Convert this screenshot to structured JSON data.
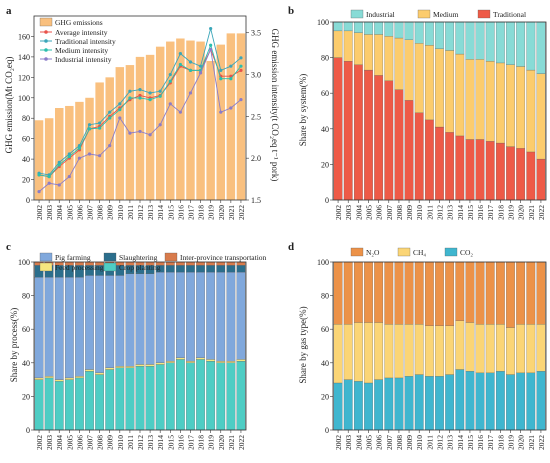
{
  "years": [
    "2002",
    "2003",
    "2004",
    "2005",
    "2006",
    "2007",
    "2008",
    "2009",
    "2010",
    "2011",
    "2012",
    "2013",
    "2014",
    "2015",
    "2016",
    "2017",
    "2018",
    "2019",
    "2020",
    "2021",
    "2022"
  ],
  "chart_data": [
    {
      "panel": "a",
      "type": "bar+line",
      "ylabel": "GHG emission(Mt CO₂eq)",
      "y2label": "GHG emission intensity(t CO₂eq t⁻¹ pork)",
      "ylim": [
        0,
        180
      ],
      "y2lim": [
        1.5,
        3.7
      ],
      "yticks": [
        0,
        20,
        40,
        60,
        80,
        100,
        120,
        140,
        160
      ],
      "y2ticks": [
        "1.5",
        "2.0",
        "2.5",
        "3.0",
        "3.5"
      ],
      "bar_series": {
        "name": "GHG emissions",
        "color": "#f9c07f",
        "values": [
          78,
          80,
          90,
          92,
          96,
          100,
          115,
          120,
          130,
          132,
          140,
          142,
          150,
          155,
          158,
          156,
          155,
          136,
          152,
          163,
          163
        ]
      },
      "line_series": [
        {
          "name": "Average intensity",
          "color": "#e8524a",
          "values": [
            1.8,
            1.78,
            1.9,
            2.0,
            2.1,
            2.35,
            2.38,
            2.5,
            2.6,
            2.7,
            2.75,
            2.72,
            2.75,
            2.9,
            3.1,
            3.05,
            3.05,
            3.3,
            2.98,
            2.98,
            3.05
          ]
        },
        {
          "name": "Traditional intensity",
          "color": "#3aa6b9",
          "values": [
            1.82,
            1.8,
            1.95,
            2.05,
            2.15,
            2.4,
            2.42,
            2.55,
            2.65,
            2.8,
            2.82,
            2.78,
            2.8,
            3.0,
            3.25,
            3.15,
            3.1,
            3.55,
            3.05,
            3.1,
            3.2
          ]
        },
        {
          "name": "Medium intensity",
          "color": "#2bbfae",
          "values": [
            1.8,
            1.78,
            1.92,
            2.02,
            2.12,
            2.35,
            2.36,
            2.48,
            2.58,
            2.72,
            2.72,
            2.7,
            2.74,
            2.92,
            3.12,
            3.05,
            3.05,
            3.35,
            2.95,
            2.95,
            3.1
          ]
        },
        {
          "name": "Industrial intensity",
          "color": "#8b7cc8",
          "values": [
            1.6,
            1.7,
            1.68,
            1.78,
            2.0,
            2.05,
            2.03,
            2.15,
            2.48,
            2.3,
            2.32,
            2.28,
            2.4,
            2.65,
            2.55,
            2.78,
            3.02,
            3.3,
            2.55,
            2.6,
            2.7
          ]
        }
      ]
    },
    {
      "panel": "b",
      "type": "bar",
      "stacked": true,
      "ylabel": "Share by system(%)",
      "ylim": [
        0,
        100
      ],
      "yticks": [
        0,
        20,
        40,
        60,
        80,
        100
      ],
      "series": [
        {
          "name": "Traditional",
          "color": "#ee5a47",
          "values": [
            80,
            78,
            76,
            73,
            70,
            67,
            62,
            56,
            49,
            45,
            41,
            38,
            36,
            34,
            34,
            33,
            32,
            30,
            29,
            27,
            23
          ]
        },
        {
          "name": "Medium",
          "color": "#fccc6d",
          "values": [
            15,
            17,
            18,
            20,
            23,
            25,
            29,
            34,
            39,
            42,
            44,
            46,
            46,
            45,
            45,
            45,
            45,
            46,
            46,
            46,
            48
          ]
        },
        {
          "name": "Industrial",
          "color": "#88dbd6",
          "values": [
            5,
            5,
            6,
            7,
            7,
            8,
            9,
            10,
            12,
            13,
            15,
            16,
            18,
            21,
            21,
            22,
            23,
            24,
            25,
            27,
            29
          ]
        }
      ]
    },
    {
      "panel": "c",
      "type": "bar",
      "stacked": true,
      "ylabel": "Share by process(%)",
      "ylim": [
        0,
        100
      ],
      "yticks": [
        0,
        20,
        40,
        60,
        80,
        100
      ],
      "series": [
        {
          "name": "Crop planting",
          "color": "#4ecdc4",
          "values": [
            30,
            31,
            29,
            30,
            31,
            35,
            33,
            36,
            37,
            37,
            38,
            38,
            39,
            40,
            42,
            40,
            42,
            41,
            40,
            40,
            41
          ]
        },
        {
          "name": "Feed processing",
          "color": "#f6e67f",
          "values": [
            1,
            1,
            1,
            1,
            1,
            1,
            1,
            1,
            1,
            1,
            1,
            1,
            1,
            1,
            1,
            1,
            1,
            1,
            1,
            1,
            1
          ]
        },
        {
          "name": "Pig farming",
          "color": "#80a8dc",
          "values": [
            60,
            59,
            61,
            60,
            59,
            56,
            58,
            55,
            54,
            55,
            54,
            54,
            54,
            53,
            51,
            53,
            51,
            52,
            53,
            53,
            52
          ]
        },
        {
          "name": "Slaughtering",
          "color": "#2b6e8c",
          "values": [
            7,
            7,
            7,
            7,
            7,
            6,
            6,
            6,
            6,
            5,
            5,
            5,
            4,
            4,
            4,
            4,
            4,
            4,
            4,
            4,
            4
          ]
        },
        {
          "name": "Inter-province transportation",
          "color": "#d87b4c",
          "values": [
            2,
            2,
            2,
            2,
            2,
            2,
            2,
            2,
            2,
            2,
            2,
            2,
            2,
            2,
            2,
            2,
            2,
            2,
            2,
            2,
            2
          ]
        }
      ]
    },
    {
      "panel": "d",
      "type": "bar",
      "stacked": true,
      "ylabel": "Share by gas type(%)",
      "ylim": [
        0,
        100
      ],
      "yticks": [
        0,
        20,
        40,
        60,
        80,
        100
      ],
      "series": [
        {
          "name": "CO₂",
          "color": "#3fb6cf",
          "values": [
            28,
            30,
            29,
            28,
            30,
            31,
            31,
            32,
            33,
            32,
            32,
            33,
            36,
            35,
            34,
            34,
            35,
            33,
            34,
            34,
            35
          ]
        },
        {
          "name": "CH₄",
          "color": "#fbd576",
          "values": [
            35,
            33,
            35,
            36,
            34,
            32,
            32,
            31,
            30,
            30,
            30,
            29,
            29,
            29,
            29,
            29,
            28,
            28,
            29,
            29,
            28
          ]
        },
        {
          "name": "N₂O",
          "color": "#ec9248",
          "values": [
            37,
            37,
            36,
            36,
            36,
            37,
            37,
            37,
            37,
            38,
            38,
            38,
            35,
            36,
            37,
            37,
            37,
            39,
            37,
            37,
            37
          ]
        }
      ]
    }
  ],
  "panel_labels": [
    "a",
    "b",
    "c",
    "d"
  ]
}
